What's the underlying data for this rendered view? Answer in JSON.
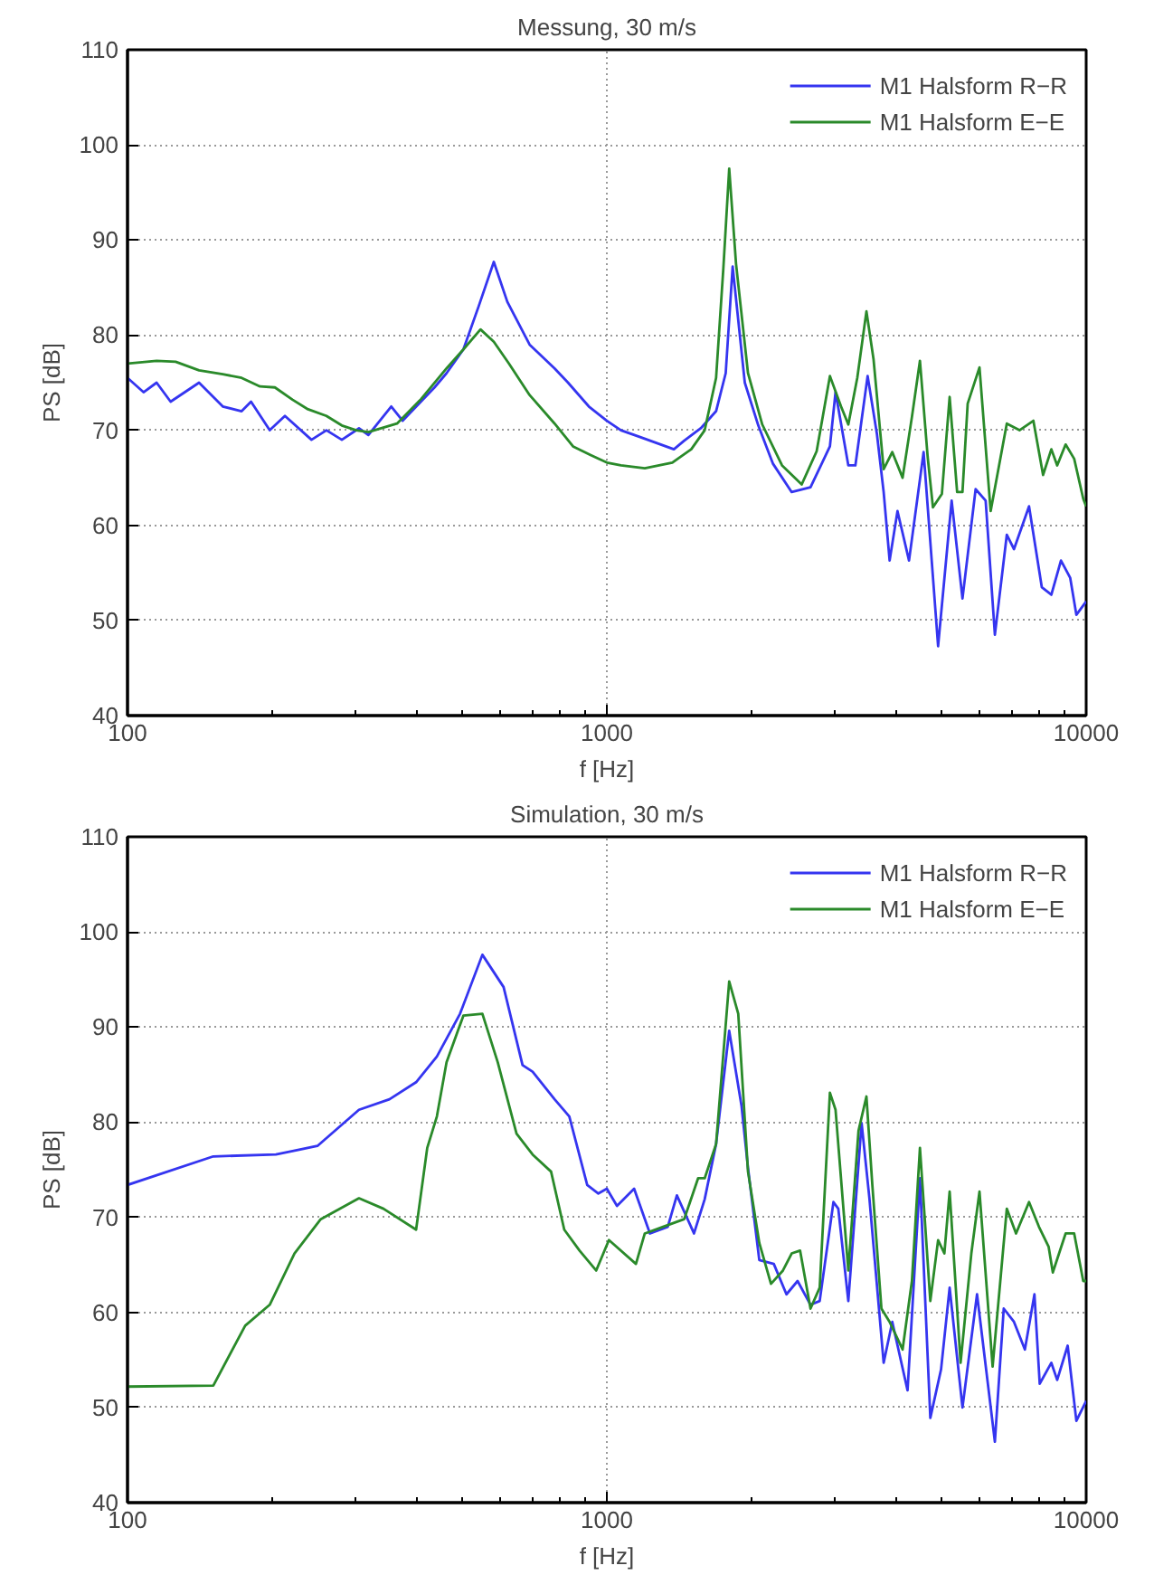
{
  "chart_data": [
    {
      "type": "line",
      "title": "Messung, 30 m/s",
      "xlabel": "f [Hz]",
      "ylabel": "PS [dB]",
      "log": "x",
      "xlim": [
        100,
        10000
      ],
      "ylim": [
        40,
        110
      ],
      "xticks": [
        100,
        1000,
        10000
      ],
      "yticks": [
        40,
        50,
        60,
        70,
        80,
        90,
        100,
        110
      ],
      "grid": true,
      "legend": "top right",
      "series": [
        {
          "name": "M1 Halsform R−R",
          "color": "#3535f0",
          "x": [
            100,
            108,
            115,
            123,
            141,
            158,
            173,
            181,
            198,
            213,
            242,
            260,
            280,
            304,
            318,
            355,
            375,
            437,
            463,
            502,
            540,
            581,
            620,
            690,
            778,
            830,
            917,
            1000,
            1070,
            1170,
            1380,
            1450,
            1570,
            1690,
            1770,
            1830,
            1940,
            2070,
            2220,
            2430,
            2660,
            2920,
            3000,
            3190,
            3300,
            3500,
            3660,
            3780,
            3890,
            4040,
            4270,
            4580,
            4910,
            5240,
            5520,
            5880,
            6170,
            6450,
            6830,
            7070,
            7600,
            8080,
            8460,
            8860,
            9260,
            9540,
            10000
          ],
          "values": [
            75.5,
            74,
            75,
            73,
            75,
            72.5,
            72,
            73,
            70,
            71.5,
            69,
            70,
            69,
            70.2,
            69.5,
            72.5,
            71,
            74.5,
            76,
            78.5,
            83,
            87.7,
            83.5,
            79,
            76.5,
            75,
            72.5,
            71,
            70,
            69.3,
            68,
            68.9,
            70.2,
            72,
            76,
            87.2,
            75,
            70.5,
            66.5,
            63.5,
            64,
            68.3,
            74,
            66.3,
            66.3,
            75.7,
            69.6,
            63.5,
            56.3,
            61.5,
            56.3,
            67.7,
            47.3,
            62.6,
            52.3,
            63.8,
            62.6,
            48.5,
            59,
            57.5,
            62,
            53.5,
            52.7,
            56.3,
            54.5,
            50.6,
            52
          ]
        },
        {
          "name": "M1 Halsform E−E",
          "color": "#2a8a2a",
          "x": [
            100,
            115,
            126,
            141,
            158,
            173,
            189,
            203,
            221,
            238,
            260,
            280,
            300,
            318,
            365,
            410,
            463,
            502,
            545,
            581,
            625,
            690,
            778,
            850,
            925,
            1000,
            1070,
            1200,
            1370,
            1500,
            1600,
            1690,
            1750,
            1800,
            1860,
            1970,
            2110,
            2320,
            2550,
            2740,
            2920,
            3080,
            3190,
            3330,
            3480,
            3600,
            3780,
            3940,
            4140,
            4330,
            4500,
            4670,
            4790,
            5000,
            5190,
            5380,
            5520,
            5660,
            5990,
            6320,
            6830,
            7260,
            7760,
            8130,
            8460,
            8700,
            9060,
            9440,
            9860,
            10000
          ],
          "values": [
            77,
            77.3,
            77.2,
            76.3,
            75.9,
            75.5,
            74.6,
            74.5,
            73.2,
            72.2,
            71.5,
            70.5,
            70,
            69.8,
            70.7,
            73.3,
            76.5,
            78.5,
            80.6,
            79.3,
            77,
            73.7,
            70.7,
            68.3,
            67.4,
            66.6,
            66.3,
            66,
            66.6,
            68,
            70,
            75.5,
            87,
            97.5,
            87.5,
            76,
            70.6,
            66.3,
            64.3,
            67.8,
            75.7,
            72.5,
            70.6,
            75.5,
            82.5,
            77.5,
            65.9,
            67.7,
            65,
            71.4,
            77.3,
            67.2,
            61.9,
            63.3,
            73.5,
            63.5,
            63.5,
            72.8,
            76.6,
            61.5,
            70.7,
            70,
            71,
            65.3,
            68,
            66.3,
            68.5,
            67,
            62.8,
            62
          ]
        }
      ]
    },
    {
      "type": "line",
      "title": "Simulation, 30 m/s",
      "xlabel": "f [Hz]",
      "ylabel": "PS [dB]",
      "log": "x",
      "xlim": [
        100,
        10000
      ],
      "ylim": [
        40,
        110
      ],
      "xticks": [
        100,
        1000,
        10000
      ],
      "yticks": [
        40,
        50,
        60,
        70,
        80,
        90,
        100,
        110
      ],
      "grid": true,
      "legend": "top right",
      "series": [
        {
          "name": "M1 Halsform R−R",
          "color": "#3535f0",
          "x": [
            100,
            151,
            204,
            249,
            304,
            352,
            400,
            442,
            494,
            550,
            609,
            667,
            700,
            778,
            835,
            910,
            960,
            1000,
            1050,
            1140,
            1230,
            1340,
            1400,
            1520,
            1600,
            1690,
            1800,
            1910,
            1970,
            2080,
            2230,
            2370,
            2500,
            2660,
            2780,
            2970,
            3040,
            3190,
            3400,
            3530,
            3780,
            3940,
            4240,
            4500,
            4730,
            4980,
            5190,
            5520,
            5920,
            6450,
            6730,
            7070,
            7450,
            7800,
            8000,
            8460,
            8700,
            9150,
            9540,
            10000
          ],
          "values": [
            73.4,
            76.4,
            76.6,
            77.5,
            81.3,
            82.4,
            84.2,
            86.9,
            91.4,
            97.6,
            94.2,
            86,
            85.3,
            82.4,
            80.6,
            73.4,
            72.5,
            73,
            71.2,
            73,
            68.3,
            69,
            72.3,
            68.3,
            71.9,
            77.7,
            89.6,
            81.7,
            75.2,
            65.5,
            65.1,
            61.9,
            63.3,
            60.8,
            61.2,
            71.6,
            70.9,
            61.2,
            79.9,
            72,
            54.7,
            59,
            51.8,
            74.1,
            48.9,
            54,
            62.6,
            50,
            61.9,
            46.4,
            60.4,
            59,
            56.1,
            61.9,
            52.5,
            54.7,
            52.9,
            56.5,
            48.6,
            50.7
          ]
        },
        {
          "name": "M1 Halsform E−E",
          "color": "#2a8a2a",
          "x": [
            100,
            151,
            176,
            198,
            223,
            253,
            304,
            342,
            400,
            422,
            442,
            463,
            502,
            550,
            592,
            648,
            700,
            765,
            815,
            877,
            950,
            1010,
            1150,
            1200,
            1310,
            1450,
            1550,
            1600,
            1690,
            1800,
            1880,
            1970,
            2080,
            2200,
            2330,
            2430,
            2530,
            2660,
            2780,
            2920,
            3000,
            3190,
            3350,
            3480,
            3580,
            3740,
            3890,
            4140,
            4330,
            4500,
            4730,
            4910,
            5060,
            5190,
            5470,
            5760,
            5990,
            6380,
            6830,
            7140,
            7600,
            7970,
            8350,
            8520,
            9060,
            9440,
            9860,
            10000
          ],
          "values": [
            52.2,
            52.3,
            58.6,
            60.8,
            66.2,
            69.8,
            72,
            70.9,
            68.7,
            77.3,
            80.6,
            86.3,
            91.2,
            91.4,
            86.3,
            78.8,
            76.6,
            74.8,
            68.7,
            66.5,
            64.4,
            67.6,
            65.1,
            68.3,
            69,
            69.8,
            74.1,
            74.1,
            77.7,
            94.8,
            91.4,
            74.8,
            67.3,
            63,
            64.4,
            66.2,
            66.5,
            60.4,
            62.6,
            83.1,
            81.3,
            64.4,
            79.1,
            82.7,
            73.4,
            60.4,
            59,
            56.1,
            63.3,
            77.3,
            61.2,
            67.6,
            66.2,
            72.7,
            54.7,
            66.2,
            72.7,
            54.3,
            70.9,
            68.3,
            71.6,
            69,
            66.9,
            64.2,
            68.3,
            68.3,
            63.3,
            63.3
          ]
        }
      ]
    }
  ]
}
